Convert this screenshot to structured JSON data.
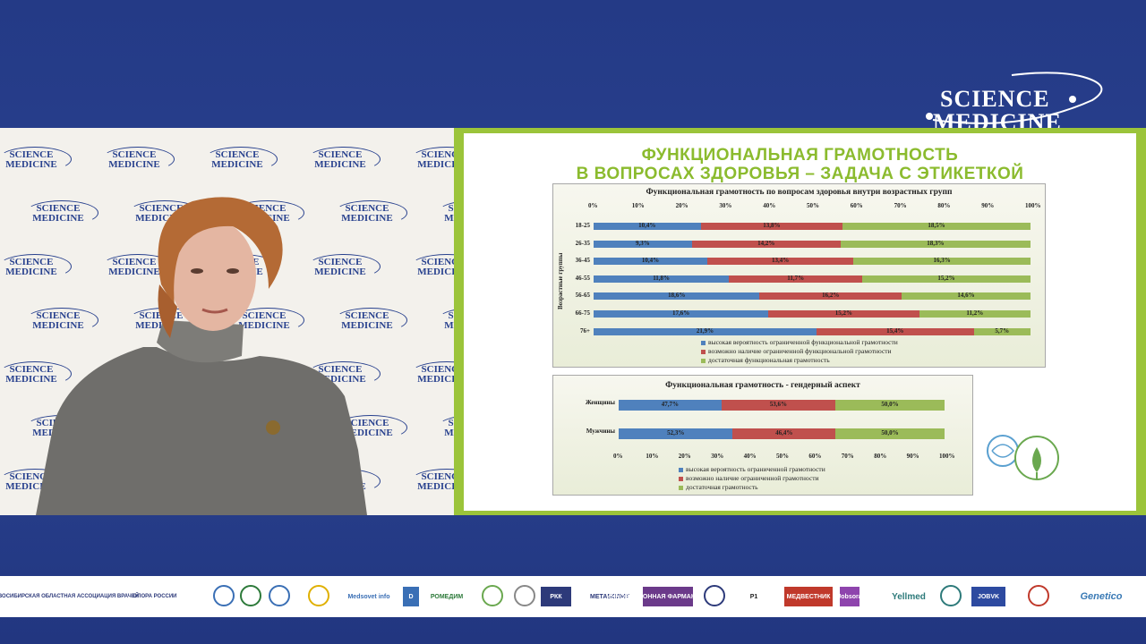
{
  "brand": {
    "line1": "SCIENCE",
    "line2": "MEDICINE",
    "accent": "#ffffff"
  },
  "wall_logo": {
    "line1": "SCIENCE",
    "line2": "MEDICINE"
  },
  "slide": {
    "title_line1": "ФУНКЦИОНАЛЬНАЯ ГРАМОТНОСТЬ",
    "title_line2": "В ВОПРОСАХ ЗДОРОВЬЯ – ЗАДАЧА С ЭТИКЕТКОЙ",
    "title_color": "#8bbb2e",
    "border_color": "#9bc43a"
  },
  "chart_data": [
    {
      "type": "bar",
      "stacked": true,
      "orientation": "horizontal",
      "title": "Функциональная грамотность по вопросам здоровья внутри возрастных групп",
      "ylabel": "Возрастные группы",
      "xticks": [
        "0%",
        "10%",
        "20%",
        "30%",
        "40%",
        "50%",
        "60%",
        "70%",
        "80%",
        "90%",
        "100%"
      ],
      "categories": [
        "18-25",
        "26-35",
        "36-45",
        "46-55",
        "56-65",
        "66-75",
        "76+"
      ],
      "series": [
        {
          "name": "высокая вероятность ограниченной функциональной грамотности",
          "color": "#4f81bd",
          "labels": [
            "10,4%",
            "9,3%",
            "10,4%",
            "11,8%",
            "18,6%",
            "17,6%",
            "21,9%"
          ],
          "values": [
            24.5,
            22.5,
            26.0,
            31.0,
            38.0,
            40.0,
            51.0
          ]
        },
        {
          "name": "возможно наличие ограниченной функциональной грамотности",
          "color": "#c0504d",
          "labels": [
            "13,8%",
            "14,2%",
            "13,4%",
            "11,7%",
            "16,2%",
            "15,2%",
            "15,4%"
          ],
          "values": [
            32.5,
            34.0,
            33.5,
            30.5,
            32.5,
            34.5,
            36.0
          ]
        },
        {
          "name": "достаточная функциональная грамотность",
          "color": "#9bbb59",
          "labels": [
            "18,5%",
            "18,3%",
            "16,3%",
            "15,2%",
            "14,6%",
            "11,2%",
            "5,7%"
          ],
          "values": [
            43.0,
            43.5,
            40.5,
            38.5,
            29.5,
            25.5,
            13.0
          ]
        }
      ]
    },
    {
      "type": "bar",
      "stacked": true,
      "orientation": "horizontal",
      "title": "Функциональная грамотность - гендерный аспект",
      "xticks": [
        "0%",
        "10%",
        "20%",
        "30%",
        "40%",
        "50%",
        "60%",
        "70%",
        "80%",
        "90%",
        "100%"
      ],
      "categories": [
        "Женщины",
        "Мужчины"
      ],
      "series": [
        {
          "name": "высокая вероятность ограниченной грамотности",
          "color": "#4f81bd",
          "labels": [
            "47,7%",
            "52,3%"
          ],
          "values": [
            31.5,
            35.0
          ]
        },
        {
          "name": "возможно наличие ограниченной грамотности",
          "color": "#c0504d",
          "labels": [
            "53,6%",
            "46,4%"
          ],
          "values": [
            35.0,
            31.5
          ]
        },
        {
          "name": "достаточная грамотность",
          "color": "#9bbb59",
          "labels": [
            "50,0%",
            "50,0%"
          ],
          "values": [
            33.5,
            33.5
          ]
        }
      ]
    }
  ],
  "partners": [
    "НОВОСИБИРСКАЯ ОБЛАСТНАЯ АССОЦИАЦИЯ ВРАЧЕЙ",
    "ОПОРА РОССИИ",
    "Medsovet info",
    "D",
    "РОМЕДИМ",
    "РКК",
    "МЕТАБОЛИТ",
    "ИННОВАЦИОННАЯ ФАРМАКОТЕРАПИЯ",
    "P1",
    "МЕДВЕСТНИК",
    "Jobsora",
    "Yellmed",
    "JOBVK",
    "Genetico"
  ]
}
